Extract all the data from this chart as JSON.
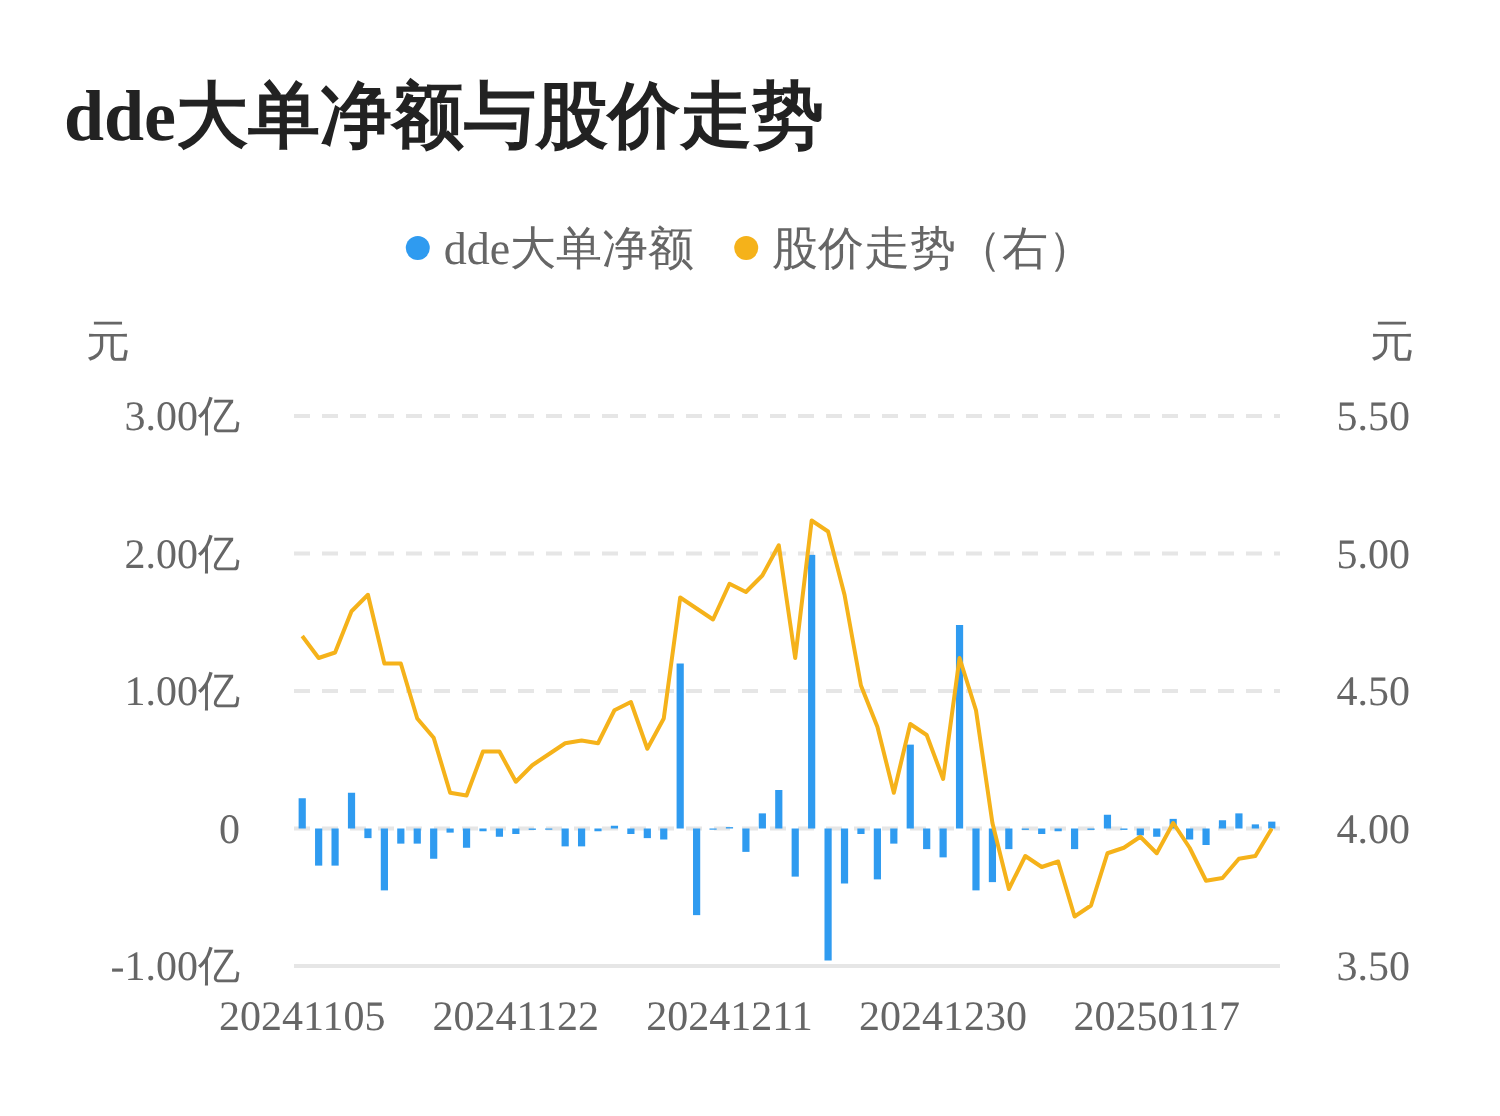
{
  "chart_data": {
    "type": "bar",
    "title": "dde大单净额与股价走势",
    "categories": [
      "20241105",
      null,
      null,
      null,
      null,
      null,
      null,
      null,
      null,
      null,
      null,
      null,
      null,
      "20241122",
      null,
      null,
      null,
      null,
      null,
      null,
      null,
      null,
      null,
      null,
      null,
      null,
      "20241211",
      null,
      null,
      null,
      null,
      null,
      null,
      null,
      null,
      null,
      null,
      null,
      null,
      "20241230",
      null,
      null,
      null,
      null,
      null,
      null,
      null,
      null,
      null,
      null,
      null,
      null,
      "20250117",
      null,
      null,
      null,
      null,
      null,
      null,
      null
    ],
    "series": [
      {
        "name": "dde大单净额",
        "color": "#2f9bf0",
        "values": [
          0.22,
          -0.27,
          -0.27,
          0.26,
          -0.07,
          -0.45,
          -0.11,
          -0.11,
          -0.22,
          -0.03,
          -0.14,
          -0.02,
          -0.06,
          -0.04,
          -0.01,
          0,
          -0.13,
          -0.13,
          -0.02,
          0.02,
          -0.04,
          -0.07,
          -0.08,
          1.2,
          -0.63,
          0,
          0.01,
          -0.17,
          0.11,
          0.28,
          -0.35,
          1.99,
          -0.96,
          -0.4,
          -0.04,
          -0.37,
          -0.11,
          0.61,
          -0.15,
          -0.21,
          1.48,
          -0.45,
          -0.39,
          -0.15,
          -0.01,
          -0.04,
          -0.02,
          -0.15,
          -0.01,
          0.1,
          -0.01,
          -0.05,
          -0.06,
          0.07,
          -0.08,
          -0.12,
          0.06,
          0.11,
          0.03,
          0.05
        ]
      },
      {
        "name": "股价走势（右）",
        "type": "line",
        "axis": "y2",
        "color": "#f5b21a",
        "values": [
          4.7,
          4.62,
          4.64,
          4.79,
          4.85,
          4.6,
          4.6,
          4.4,
          4.33,
          4.13,
          4.12,
          4.28,
          4.28,
          4.17,
          4.23,
          4.27,
          4.31,
          4.32,
          4.31,
          4.43,
          4.46,
          4.29,
          4.4,
          4.84,
          4.8,
          4.76,
          4.89,
          4.86,
          4.92,
          5.03,
          4.62,
          5.12,
          5.08,
          4.85,
          4.52,
          4.37,
          4.13,
          4.38,
          4.34,
          4.18,
          4.62,
          4.43,
          4.02,
          3.78,
          3.9,
          3.86,
          3.88,
          3.68,
          3.72,
          3.91,
          3.93,
          3.97,
          3.91,
          4.02,
          3.93,
          3.81,
          3.82,
          3.89,
          3.9,
          4.0
        ]
      }
    ],
    "ylabel": "元",
    "y2label": "元",
    "ylim": [
      -1,
      3
    ],
    "yticks": [
      {
        "value": -1,
        "label": "-1.00亿"
      },
      {
        "value": 0,
        "label": "0"
      },
      {
        "value": 1,
        "label": "1.00亿"
      },
      {
        "value": 2,
        "label": "2.00亿"
      },
      {
        "value": 3,
        "label": "3.00亿"
      }
    ],
    "y2lim": [
      3.5,
      5.5
    ],
    "y2ticks": [
      {
        "value": 3.5,
        "label": "3.50"
      },
      {
        "value": 4,
        "label": "4.00"
      },
      {
        "value": 4.5,
        "label": "4.50"
      },
      {
        "value": 5,
        "label": "5.00"
      },
      {
        "value": 5.5,
        "label": "5.50"
      }
    ],
    "grid": "y",
    "legend": "top"
  }
}
